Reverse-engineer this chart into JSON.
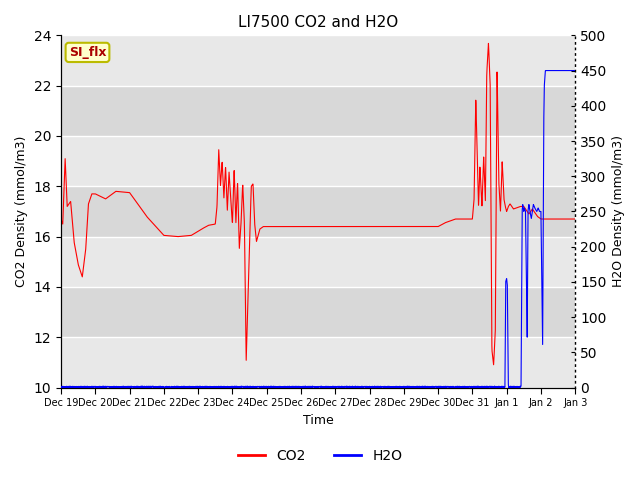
{
  "title": "LI7500 CO2 and H2O",
  "xlabel": "Time",
  "ylabel_left": "CO2 Density (mmol/m3)",
  "ylabel_right": "H2O Density (mmol/m3)",
  "ylim_left": [
    10,
    24
  ],
  "ylim_right": [
    0,
    500
  ],
  "yticks_left": [
    10,
    12,
    14,
    16,
    18,
    20,
    22,
    24
  ],
  "yticks_right": [
    0,
    50,
    100,
    150,
    200,
    250,
    300,
    350,
    400,
    450,
    500
  ],
  "band_colors": [
    "#e8e8e8",
    "#d8d8d8"
  ],
  "grid_color": "#ffffff",
  "annotation_text": "SI_flx",
  "annotation_bg": "#ffffcc",
  "annotation_border": "#bbbb00",
  "co2_color": "#ff0000",
  "h2o_color": "#0000ff",
  "legend_co2": "CO2",
  "legend_h2o": "H2O",
  "tick_labels": [
    "Dec 19",
    "Dec 20",
    "Dec 21",
    "Dec 22",
    "Dec 23",
    "Dec 24",
    "Dec 25",
    "Dec 26",
    "Dec 27",
    "Dec 28",
    "Dec 29",
    "Dec 30",
    "Dec 31",
    "Jan 1",
    "Jan 2",
    "Jan 3"
  ]
}
